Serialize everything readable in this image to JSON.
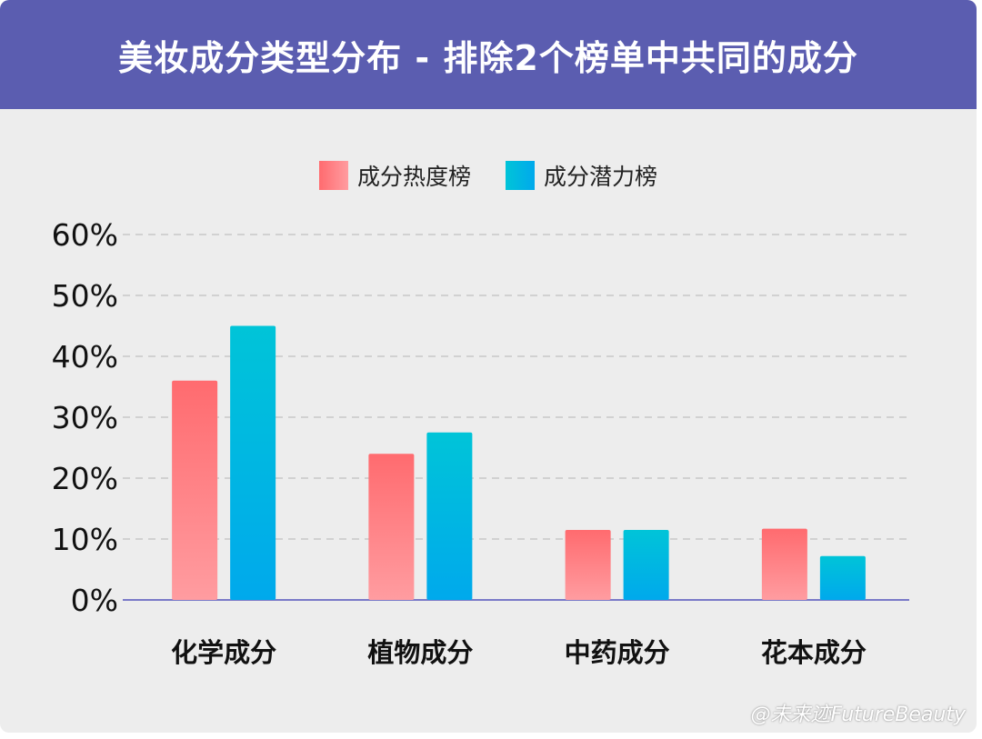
{
  "header": {
    "title": "美妆成分类型分布 - 排除2个榜单中共同的成分"
  },
  "colors": {
    "header_bg": "#5b5db0",
    "series1_top": "#ff6b6f",
    "series1_bottom": "#ff9ca0",
    "series2_top": "#00c4d8",
    "series2_bottom": "#00a9ec",
    "axis": "#7a7ac8",
    "grid": "#c8c8c8"
  },
  "chart_data": {
    "type": "bar",
    "categories": [
      "化学成分",
      "植物成分",
      "中药成分",
      "花本成分"
    ],
    "series": [
      {
        "name": "成分热度榜",
        "values": [
          36,
          24,
          11.5,
          11.7
        ]
      },
      {
        "name": "成分潜力榜",
        "values": [
          45,
          27.5,
          11.5,
          7.2
        ]
      }
    ],
    "y_ticks": [
      "0%",
      "10%",
      "20%",
      "30%",
      "40%",
      "50%",
      "60%"
    ],
    "ylim": [
      0,
      60
    ],
    "grid": true,
    "legend_position": "top-center"
  },
  "watermark": "@未来迹FutureBeauty"
}
